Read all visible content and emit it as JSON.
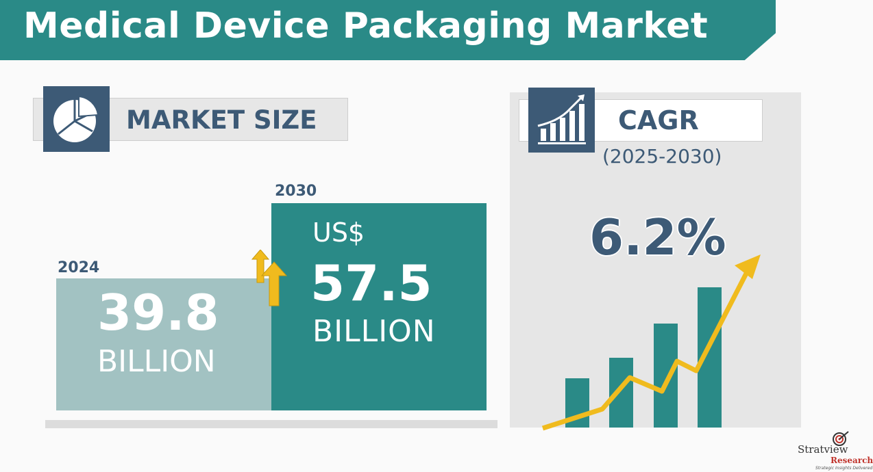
{
  "title": "Medical Device Packaging Market",
  "market_size": {
    "label": "MARKET SIZE",
    "icon": "pie-chart-icon",
    "year_start": "2024",
    "value_start": "39.8",
    "unit_start": "BILLION",
    "year_end": "2030",
    "currency_end": "US$",
    "value_end": "57.5",
    "unit_end": "BILLION",
    "arrow_icon": "up-arrows-icon"
  },
  "cagr": {
    "label": "CAGR",
    "period": "(2025-2030)",
    "value": "6.2%",
    "icon": "growth-chart-icon"
  },
  "logo": {
    "name": "Stratview",
    "sub": "Research",
    "tagline": "Strategic Insights Delivered"
  },
  "colors": {
    "teal": "#2a8a87",
    "light_teal": "#a2c2c2",
    "navy": "#3d5a76",
    "yellow": "#f0bb1e"
  },
  "chart_data": {
    "type": "bar",
    "categories": [
      "2024",
      "2030"
    ],
    "values": [
      39.8,
      57.5
    ],
    "unit": "US$ Billion"
  }
}
